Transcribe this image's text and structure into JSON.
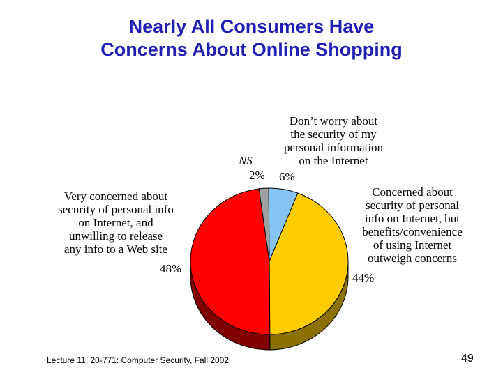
{
  "slide": {
    "title_lines": [
      "Nearly All Consumers Have",
      "Concerns About Online Shopping"
    ],
    "footer": "Lecture 11, 20-771: Computer Security,  Fall 2002",
    "page_number": "49"
  },
  "chart_data": {
    "type": "pie",
    "title": "Nearly All Consumers Have Concerns About Online Shopping",
    "slices": [
      {
        "name": "NS",
        "label_lines": [
          "NS"
        ],
        "value": 2,
        "value_label": "2%",
        "color": "#a0a0a0"
      },
      {
        "name": "Don't worry",
        "label_lines": [
          "Don’t worry about",
          "the security of my",
          "personal information",
          "on the Internet"
        ],
        "value": 6,
        "value_label": "6%",
        "color": "#87c4f5"
      },
      {
        "name": "Concerned but benefits outweigh",
        "label_lines": [
          "Concerned about",
          "security of  personal",
          "info on Internet, but",
          "benefits/convenience",
          "of using Internet",
          "outweigh  concerns"
        ],
        "value": 44,
        "value_label": "44%",
        "color": "#ffcc00"
      },
      {
        "name": "Very concerned",
        "label_lines": [
          "Very concerned about",
          "security of personal info",
          "on  Internet, and",
          "unwilling to release",
          "any info to a Web site"
        ],
        "value": 48,
        "value_label": "48%",
        "color": "#ff0000"
      }
    ],
    "side_colors": [
      "#505050",
      "#4a7090",
      "#8a7000",
      "#800000"
    ]
  }
}
